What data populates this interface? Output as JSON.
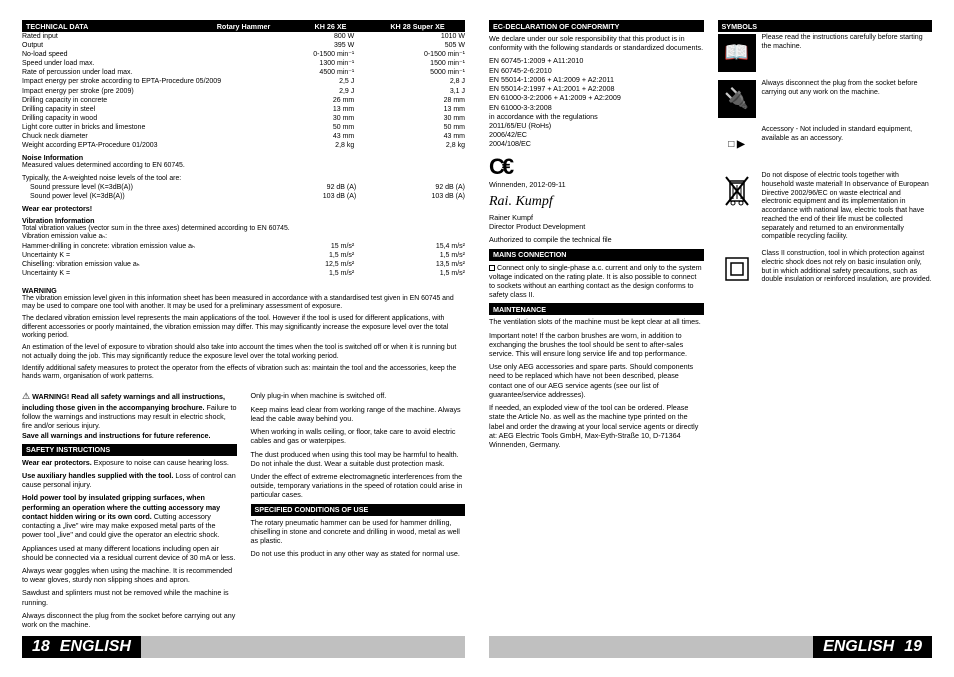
{
  "tech": {
    "title": "TECHNICAL DATA",
    "cols": [
      "Rotary Hammer",
      "KH 26 XE",
      "KH 28 Super XE"
    ],
    "rows": [
      {
        "l": "Rated input",
        "a": "800 W",
        "b": "1010 W"
      },
      {
        "l": "Output",
        "a": "395 W",
        "b": "505 W"
      },
      {
        "l": "No-load speed",
        "a": "0-1500 min⁻¹",
        "b": "0-1500 min⁻¹"
      },
      {
        "l": "Speed under load max.",
        "a": "1300 min⁻¹",
        "b": "1500 min⁻¹"
      },
      {
        "l": "Rate of percussion under load max.",
        "a": "4500 min⁻¹",
        "b": "5000 min⁻¹"
      },
      {
        "l": "Impact energy per stroke according to EPTA-Procedure 05/2009",
        "a": "2,5 J",
        "b": "2,8 J"
      },
      {
        "l": "Impact energy per stroke (pre 2009)",
        "a": "2,9 J",
        "b": "3,1 J"
      },
      {
        "l": "Drilling capacity in concrete",
        "a": "26 mm",
        "b": "28 mm"
      },
      {
        "l": "Drilling capacity in steel",
        "a": "13 mm",
        "b": "13 mm"
      },
      {
        "l": "Drilling capacity in wood",
        "a": "30 mm",
        "b": "30 mm"
      },
      {
        "l": "Light core cutter in bricks and limestone",
        "a": "50 mm",
        "b": "50 mm"
      },
      {
        "l": "Chuck neck diameter",
        "a": "43 mm",
        "b": "43 mm"
      },
      {
        "l": "Weight according EPTA-Procedure 01/2003",
        "a": "2,8 kg",
        "b": "2,8 kg"
      }
    ],
    "noise_h": "Noise Information",
    "noise_p1": "Measured values determined according to EN 60745.",
    "noise_p2": "Typically, the A-weighted noise levels of the tool are:",
    "snd1": {
      "l": "Sound pressure level (K=3dB(A))",
      "a": "92 dB (A)",
      "b": "92 dB (A)"
    },
    "snd2": {
      "l": "Sound power level (K=3dB(A))",
      "a": "103 dB (A)",
      "b": "103 dB (A)"
    },
    "wear": "Wear ear protectors!",
    "vib_h": "Vibration Information",
    "vib_p": "Total vibration values (vector sum in the three axes) determined according to EN 60745.\nVibration emission value aₕ:",
    "v1": {
      "l": "Hammer-drilling in concrete: vibration emission value aₕ",
      "a": "15 m/s²",
      "b": "15,4 m/s²"
    },
    "v2": {
      "l": "Uncertainty K =",
      "a": "1,5 m/s²",
      "b": "1,5 m/s²"
    },
    "v3": {
      "l": "Chiselling: vibration emission value aₕ",
      "a": "12,5 m/s²",
      "b": "13,5 m/s²"
    },
    "v4": {
      "l": "Uncertainty K =",
      "a": "1,5 m/s²",
      "b": "1,5 m/s²"
    }
  },
  "warning_h": "WARNING",
  "warning_p1": "The vibration emission level given in this information sheet has been measured in accordance with a standardised test given in EN 60745 and may be used to compare one tool with another. It may be used for a preliminary assessment of exposure.",
  "warning_p2": "The declared vibration emission level represents the main applications of the tool. However if the tool is used for different applications, with different accessories or poorly maintained, the vibration emission may differ. This may significantly increase the exposure level over the total working period.",
  "warning_p3": "An estimation of the level of exposure to vibration should also take into account the times when the tool is switched off or when it is running but not actually doing the job. This may significantly reduce the exposure level over the total working period.",
  "warning_p4": "Identify additional safety measures to protect the operator from the effects of vibration such as: maintain the tool and the accessories, keep the hands warm, organisation of work patterns.",
  "warnbox": "WARNING! Read all safety warnings and all instructions, including those given in the accompanying brochure.",
  "warnbox2": "Failure to follow the warnings and instructions may result in electric shock, fire and/or serious injury.",
  "warnbox3": "Save all warnings and instructions for future reference.",
  "safety_h": "SAFETY INSTRUCTIONS",
  "s1a": "Wear ear protectors.",
  "s1b": " Exposure to noise can cause hearing loss.",
  "s2a": "Use auxiliary handles supplied with the tool.",
  "s2b": " Loss of control can cause personal injury.",
  "s3a": "Hold power tool by insulated gripping surfaces, when performing an operation where the cutting accessory may contact hidden wiring or its own cord.",
  "s3b": " Cutting accessory contacting a „live\" wire may make exposed metal parts of the power tool „live\" and could give the operator an electric shock.",
  "s4": "Appliances used at many different locations including open air should be connected via a residual current device of 30 mA or less.",
  "s5": "Always wear goggles when using the machine. It is recommended to wear gloves, sturdy non slipping shoes and apron.",
  "s6": "Sawdust and splinters must not be removed while the machine is running.",
  "s7": "Always disconnect the plug from the socket before carrying out any work on the machine.",
  "c2_1": "Only plug-in when machine is switched off.",
  "c2_2": "Keep mains lead clear from working range of the machine. Always lead the cable away behind you.",
  "c2_3": "When working in walls ceiling, or floor, take care to avoid electric cables and gas or waterpipes.",
  "c2_4": "The dust produced when using this tool may be harmful to health. Do not inhale the dust. Wear a suitable dust protection mask.",
  "c2_5": "Under the effect of extreme electromagnetic interferences from the outside, temporary variations in the speed of rotation could arise in particular cases.",
  "spec_h": "SPECIFIED CONDITIONS OF USE",
  "spec_1": "The rotary pneumatic hammer can be used for hammer drilling, chiselling in stone and concrete and drilling in wood, metal as well as plastic.",
  "spec_2": "Do not use this product in any other way as stated for normal use.",
  "ec_h": "EC-DECLARATION OF CONFORMITY",
  "ec_1": "We declare under our sole responsibility that this product is in conformity with the following standards or standardized documents.",
  "ec_2": "EN 60745-1:2009 + A11:2010\nEN 60745-2-6:2010\nEN 55014-1:2006 + A1:2009 + A2:2011\nEN 55014-2:1997 + A1:2001 + A2:2008\nEN 61000-3-2:2006 + A1:2009 + A2:2009\nEN 61000-3-3:2008\nin accordance with the regulations\n2011/65/EU (RoHs)\n2006/42/EC\n2004/108/EC",
  "ec_3": "Winnenden, 2012-09-11",
  "ec_4": "Rainer Kumpf\nDirector Product Development",
  "ec_5": "Authorized to compile the technical file",
  "mains_h": "MAINS CONNECTION",
  "mains_1": "Connect only to single-phase a.c. current and only to the system voltage indicated on the rating plate. It is also possible to connect to sockets without an earthing contact as the design conforms to safety class II.",
  "maint_h": "MAINTENANCE",
  "m1": "The ventilation slots of the machine must be kept clear at all times.",
  "m2": "Important note! If the carbon brushes are worn, in addition to exchanging the brushes the tool should be sent to after-sales service. This will ensure long service life and top performance.",
  "m3": "Use only AEG accessories and spare parts. Should components need to be replaced which have not been described, please contact one of our AEG service agents (see our list of guarantee/service addresses).",
  "m4": "If needed, an exploded view of the tool can be ordered. Please state the Article No. as well as the machine type printed on the label and order the drawing at your local service agents or directly at: AEG Electric Tools GmbH, Max-Eyth-Straße 10, D-71364 Winnenden, Germany.",
  "sym_h": "SYMBOLS",
  "sym1": "Please read the instructions carefully before starting the machine.",
  "sym2": "Always disconnect the plug from the socket before carrying out any work on the machine.",
  "sym3": "Accessory - Not included in standard equipment, available as an accessory.",
  "sym4": "Do not dispose of electric tools together with household waste material! In observance of European Directive 2002/96/EC on waste electrical and electronic equipment and its implementation in accordance with national law, electric tools that have reached the end of their life must be collected separately and returned to an environmentally compatible recycling facility.",
  "sym5": "Class II construction, tool in which protection against electric shock does not rely on basic insulation only, but in which additional safety precautions, such as double insulation or reinforced insulation, are provided.",
  "pn_l": "18",
  "pn_r": "19",
  "lang": "ENGLISH"
}
